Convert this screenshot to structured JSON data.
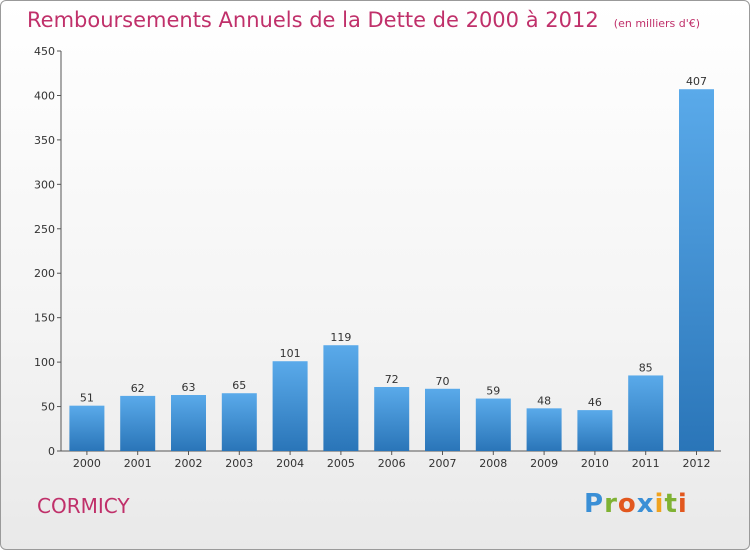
{
  "chart_data": {
    "type": "bar",
    "title": "Remboursements Annuels de la Dette de 2000 à 2012",
    "subtitle": "(en milliers d'€)",
    "categories": [
      "2000",
      "2001",
      "2002",
      "2003",
      "2004",
      "2005",
      "2006",
      "2007",
      "2008",
      "2009",
      "2010",
      "2011",
      "2012"
    ],
    "values": [
      51,
      62,
      63,
      65,
      101,
      119,
      72,
      70,
      59,
      48,
      46,
      85,
      407
    ],
    "ylim": [
      0,
      450
    ],
    "yticks": [
      0,
      50,
      100,
      150,
      200,
      250,
      300,
      350,
      400,
      450
    ],
    "grid": false,
    "bar_color": "#3a8fd6",
    "title_color": "#c0306a"
  },
  "footer": {
    "commune": "CORMICY",
    "logo": {
      "text": "Proxiti",
      "letter_colors": [
        "#3a8fd6",
        "#7fb233",
        "#e2571e",
        "#3a8fd6",
        "#f0a21e",
        "#7fb233",
        "#e2571e"
      ]
    }
  }
}
